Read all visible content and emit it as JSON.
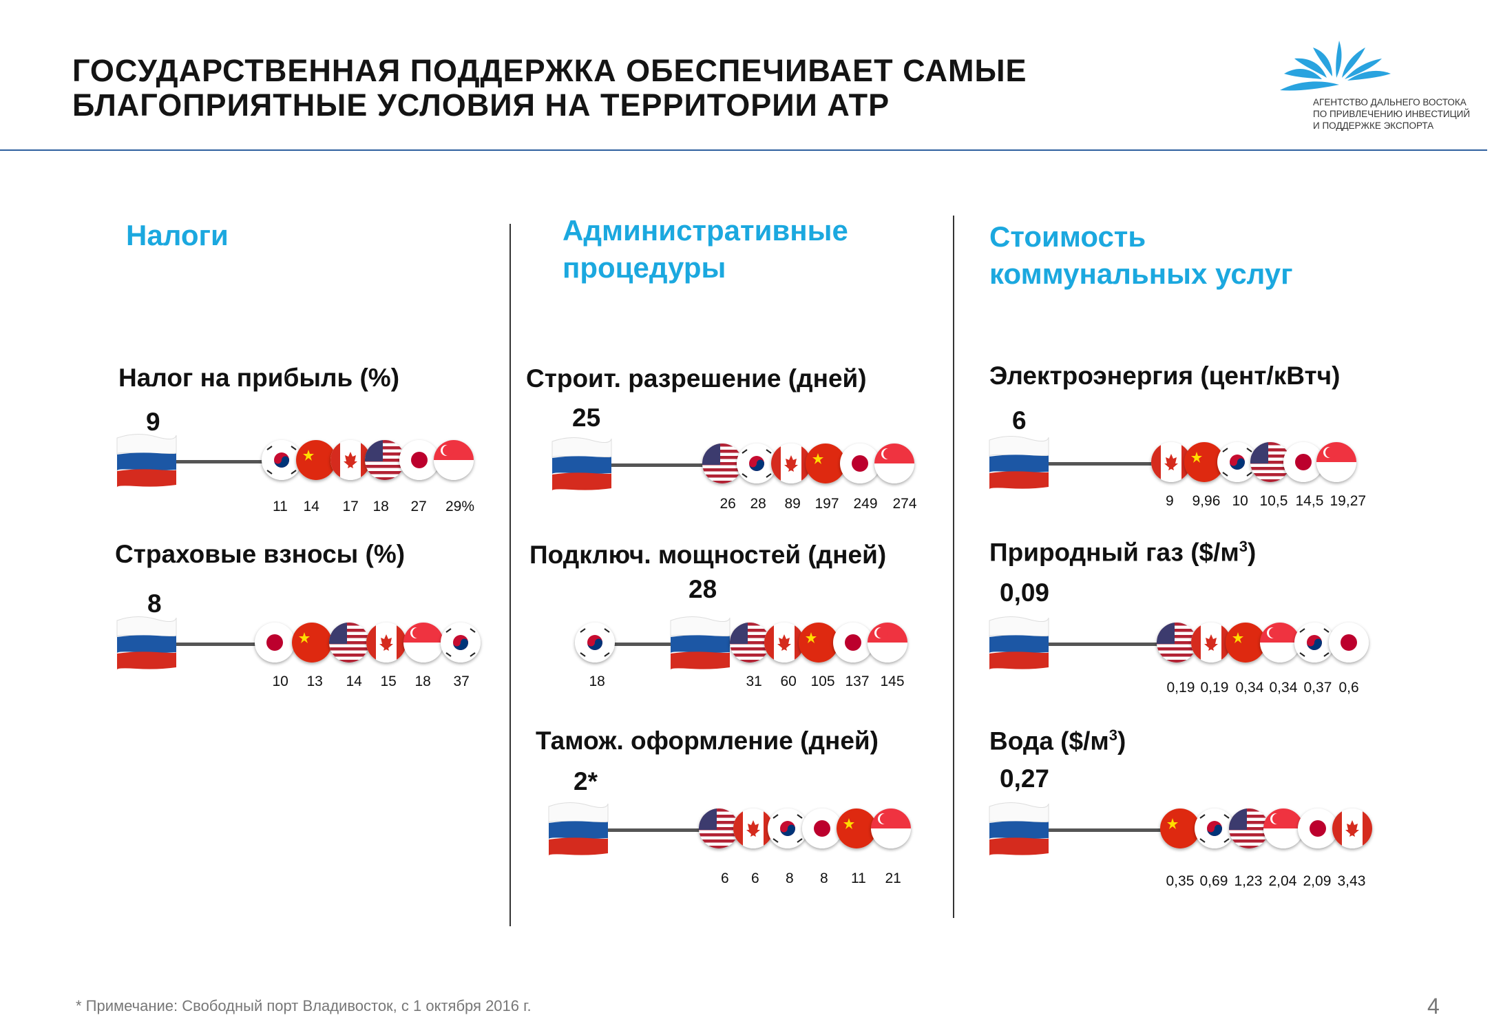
{
  "header": {
    "title_line1": "ГОСУДАРСТВЕННАЯ ПОДДЕРЖКА ОБЕСПЕЧИВАЕТ САМЫЕ",
    "title_line2": "БЛАГОПРИЯТНЫЕ УСЛОВИЯ НА ТЕРРИТОРИИ АТР",
    "logo_line1": "Агентство Дальнего Востока",
    "logo_line2": "по привлечению инвестиций",
    "logo_line3": "и поддержке экспорта",
    "logo_icon": "lotus-logo-icon",
    "accent_color": "#1ba8df",
    "rule_color": "#2d5f9e"
  },
  "columns": [
    {
      "title_line1": "Налоги",
      "title_line2": ""
    },
    {
      "title_line1": "Административные",
      "title_line2": "процедуры"
    },
    {
      "title_line1": "Стоимость",
      "title_line2": "коммунальных услуг"
    }
  ],
  "metrics": [
    {
      "title": "Налог на прибыль (%)",
      "sup": "",
      "title_suffix": "",
      "russia": "9",
      "left": [],
      "right": [
        "kr",
        "cn",
        "ca",
        "us",
        "jp",
        "sg"
      ],
      "values": [
        "11",
        "14",
        "17",
        "18",
        "27",
        "29%"
      ]
    },
    {
      "title": "Страховые взносы (%)",
      "sup": "",
      "title_suffix": "",
      "russia": "8",
      "left": [],
      "right": [
        "jp",
        "cn",
        "us",
        "ca",
        "sg",
        "kr"
      ],
      "values": [
        "10",
        "13",
        "14",
        "15",
        "18",
        "37"
      ]
    },
    {
      "title": "Строит. разрешение (дней)",
      "sup": "",
      "title_suffix": "",
      "russia": "25",
      "left": [],
      "right": [
        "us",
        "kr",
        "ca",
        "cn",
        "jp",
        "sg"
      ],
      "values": [
        "26",
        "28",
        "89",
        "197",
        "249",
        "274"
      ]
    },
    {
      "title": "Подключ. мощностей (дней)",
      "sup": "",
      "title_suffix": "",
      "russia": "28",
      "left": [
        "kr"
      ],
      "left_values": [
        "18"
      ],
      "right": [
        "us",
        "ca",
        "cn",
        "jp",
        "sg"
      ],
      "values": [
        "31",
        "60",
        "105",
        "137",
        "145"
      ]
    },
    {
      "title": "Тамож. оформление (дней)",
      "sup": "",
      "title_suffix": "",
      "russia": "2*",
      "left": [],
      "right": [
        "us",
        "ca",
        "kr",
        "jp",
        "cn",
        "sg"
      ],
      "values": [
        "6",
        "6",
        "8",
        "8",
        "11",
        "21"
      ]
    },
    {
      "title": "Электроэнергия (цент/кВтч)",
      "sup": "",
      "title_suffix": "",
      "russia": "6",
      "left": [],
      "right": [
        "ca",
        "cn",
        "kr",
        "us",
        "jp",
        "sg"
      ],
      "values": [
        "9",
        "9,96",
        "10",
        "10,5",
        "14,5",
        "19,27"
      ]
    },
    {
      "title": "Природный газ ($/м",
      "sup": "3",
      "title_suffix": ")",
      "russia": "0,09",
      "left": [],
      "right": [
        "us",
        "ca",
        "cn",
        "sg",
        "kr",
        "jp"
      ],
      "values": [
        "0,19",
        "0,19",
        "0,34",
        "0,34",
        "0,37",
        "0,6"
      ]
    },
    {
      "title": "Вода ($/м",
      "sup": "3",
      "title_suffix": ")",
      "russia": "0,27",
      "left": [],
      "right": [
        "cn",
        "kr",
        "us",
        "sg",
        "jp",
        "ca"
      ],
      "values": [
        "0,35",
        "0,69",
        "1,23",
        "2,04",
        "2,09",
        "3,43"
      ]
    }
  ],
  "footnote": "* Примечание: Свободный порт Владивосток, с 1 октября 2016 г.",
  "page_number": "4"
}
